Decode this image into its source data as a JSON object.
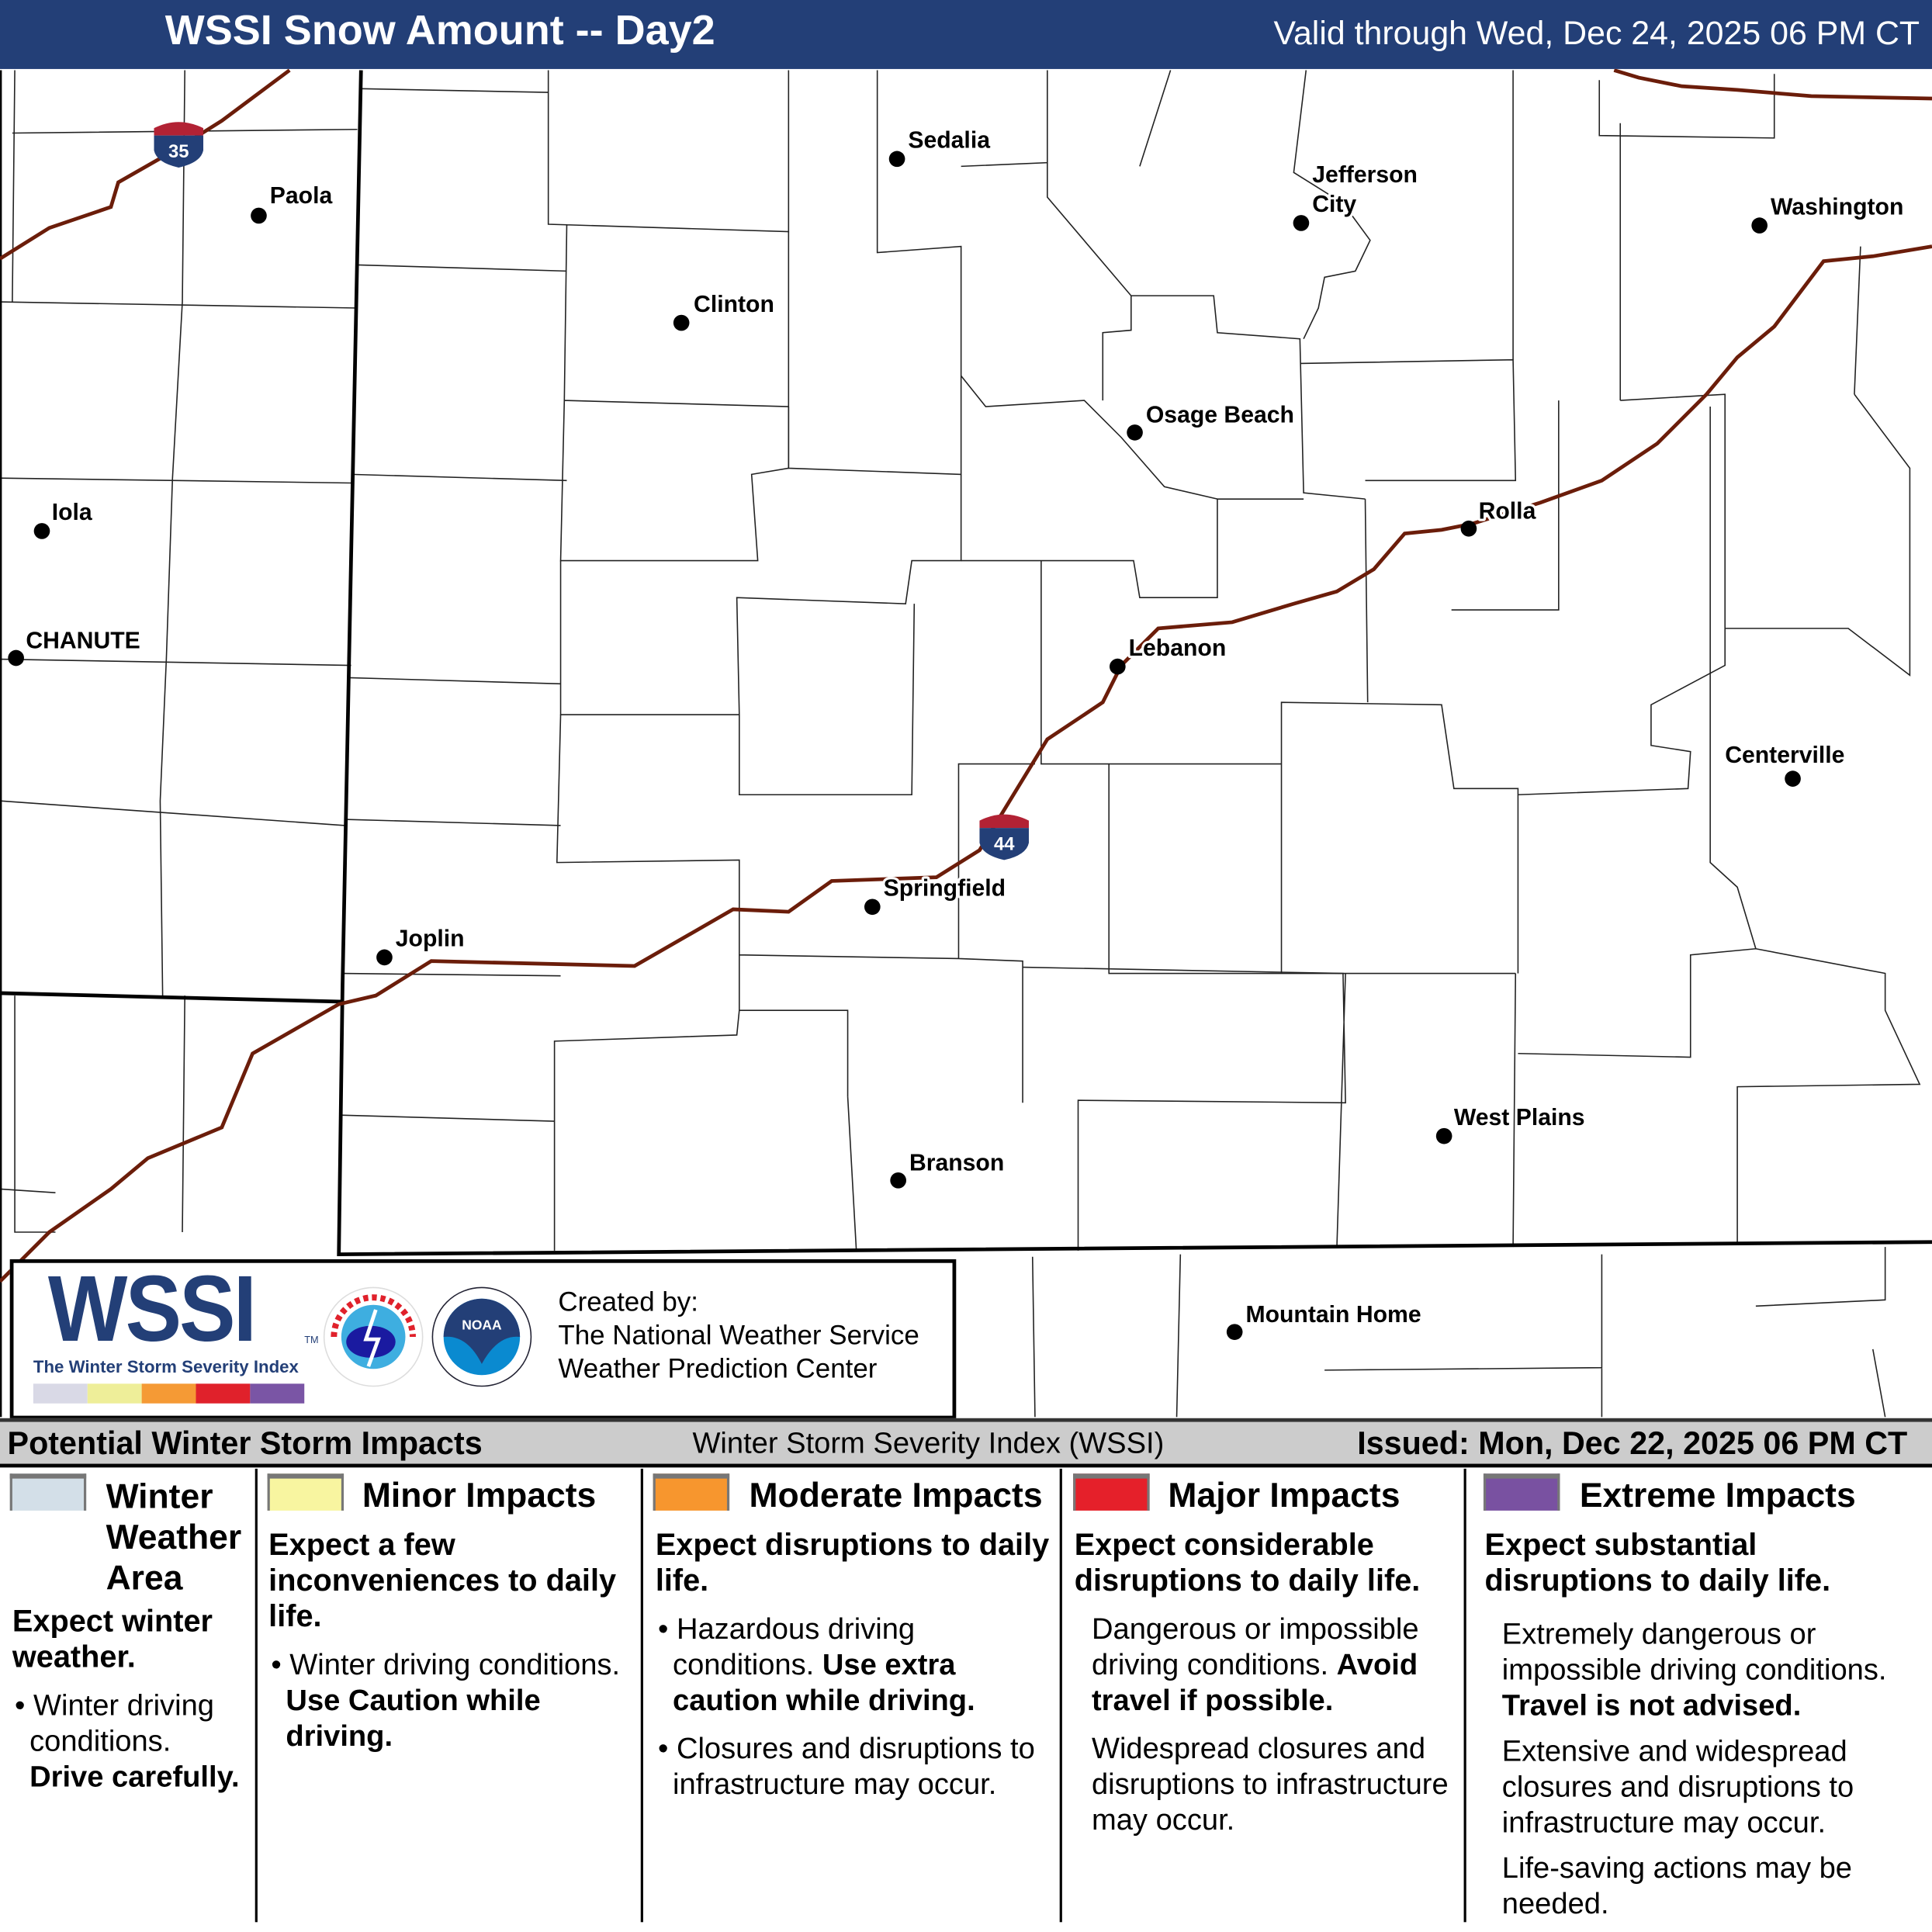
{
  "header": {
    "title": "WSSI Snow Amount -- Day2",
    "valid": "Valid through Wed, Dec 24, 2025 06 PM CT"
  },
  "map": {
    "cities": [
      {
        "name": "Sedalia"
      },
      {
        "name": "Paola"
      },
      {
        "name": "Clinton"
      },
      {
        "name": "Jefferson City"
      },
      {
        "name": "Washington"
      },
      {
        "name": "Osage Beach"
      },
      {
        "name": "Iola"
      },
      {
        "name": "CHANUTE"
      },
      {
        "name": "Rolla"
      },
      {
        "name": "Lebanon"
      },
      {
        "name": "Centerville"
      },
      {
        "name": "Springfield"
      },
      {
        "name": "Joplin"
      },
      {
        "name": "West Plains"
      },
      {
        "name": "Branson"
      },
      {
        "name": "Mountain Home"
      }
    ],
    "jefferson_city_lines": [
      "Jefferson",
      "City"
    ],
    "interstates": [
      {
        "number": "35"
      },
      {
        "number": "44"
      }
    ],
    "colors": {
      "interstate": "#6b1d0a",
      "shield_blue": "#233f77",
      "shield_red": "#b22234"
    }
  },
  "logo": {
    "wssi": "WSSI",
    "tm": "TM",
    "subtitle": "The Winter Storm Severity Index",
    "scale_colors": [
      "#d9d9e6",
      "#eeee99",
      "#f59a35",
      "#e0212b",
      "#7a55a5"
    ],
    "nws_seal": "NATIONAL WEATHER SERVICE",
    "noaa_seal": "NOAA",
    "created_by": "Created by:",
    "org1": "The National Weather Service",
    "org2": "Weather Prediction Center"
  },
  "impact_bar": {
    "left": "Potential Winter Storm Impacts",
    "center": "Winter Storm Severity Index (WSSI)",
    "right": "Issued: Mon, Dec 22, 2025 06 PM CT"
  },
  "legend": [
    {
      "title": "Winter Weather Area",
      "color": "#d3dfe8",
      "summary": "Expect winter weather.",
      "bullets": [
        "Winter driving conditions."
      ],
      "bold": "Drive carefully."
    },
    {
      "title": "Minor Impacts",
      "color": "#f8f5a0",
      "summary": "Expect a few inconveniences to daily life.",
      "text": "Winter driving conditions.",
      "bold": "Use Caution while driving."
    },
    {
      "title": "Moderate Impacts",
      "color": "#f7962e",
      "summary": "Expect disruptions to daily life.",
      "text": "Hazardous driving conditions.",
      "bold": "Use extra caution while driving.",
      "text2": "Closures and disruptions to infrastructure may occur."
    },
    {
      "title": "Major Impacts",
      "color": "#e5202a",
      "summary": "Expect considerable disruptions to daily life.",
      "text": "Dangerous or impossible driving conditions.",
      "bold": "Avoid travel if possible.",
      "text2": "Widespread closures and disruptions to infrastructure may occur."
    },
    {
      "title": "Extreme Impacts",
      "color": "#7951a1",
      "summary": "Expect substantial disruptions to daily life.",
      "text": "Extremely dangerous or impossible driving conditions.",
      "bold": "Travel is not advised.",
      "text2": "Extensive and widespread closures and disruptions to infrastructure may occur.",
      "text3": "Life-saving actions may be needed."
    }
  ]
}
